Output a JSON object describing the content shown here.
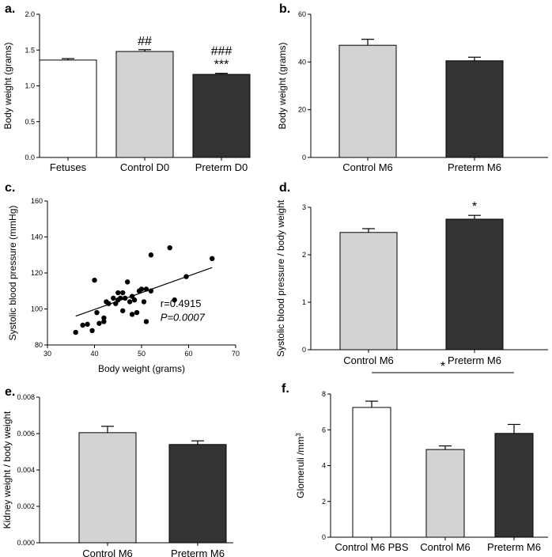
{
  "chart_data": [
    {
      "panel": "a.",
      "type": "bar",
      "categories": [
        "Fetuses",
        "Control D0",
        "Preterm D0"
      ],
      "values": [
        1.36,
        1.48,
        1.16
      ],
      "errors": [
        0.02,
        0.025,
        0.015
      ],
      "fills": [
        "#ffffff",
        "#d3d3d3",
        "#333333"
      ],
      "annotations": [
        "",
        "##",
        "###\n***"
      ],
      "ylabel": "Body weight (grams)",
      "ylim": [
        0,
        2.0
      ],
      "yticks": [
        "0.0",
        "0.5",
        "1.0",
        "1.5",
        "2.0"
      ]
    },
    {
      "panel": "b.",
      "type": "bar",
      "categories": [
        "Control M6",
        "Preterm M6"
      ],
      "values": [
        47,
        40.5
      ],
      "errors": [
        2.5,
        1.5
      ],
      "fills": [
        "#d3d3d3",
        "#333333"
      ],
      "annotations": [
        "",
        ""
      ],
      "ylabel": "Body weight (grams)",
      "ylim": [
        0,
        60
      ],
      "yticks": [
        "0",
        "20",
        "40",
        "60"
      ]
    },
    {
      "panel": "c.",
      "type": "scatter",
      "x": [
        36,
        37.5,
        38.5,
        39.5,
        40,
        40.5,
        41,
        42,
        42,
        42.5,
        43,
        44,
        44.5,
        45,
        45,
        45.5,
        46,
        46,
        46.5,
        47,
        47.5,
        48,
        48,
        48.5,
        49,
        49.5,
        50,
        50.5,
        51,
        51,
        52,
        52,
        56,
        57,
        59.5,
        65
      ],
      "y": [
        87,
        91,
        91.5,
        88,
        116,
        98,
        92,
        93,
        95,
        104,
        103,
        106,
        103,
        109,
        105,
        106,
        99,
        109,
        106,
        115,
        104,
        97,
        107,
        105,
        98,
        110,
        111,
        104,
        111,
        93,
        130,
        110,
        134,
        105,
        118,
        128
      ],
      "fit_line": {
        "x": [
          36,
          65
        ],
        "y": [
          96,
          123
        ]
      },
      "r_label": "r=0.4915",
      "p_label": "P=0.0007",
      "xlabel": "Body weight (grams)",
      "ylabel": "Systolic blood pressure (mmHg)",
      "xlim": [
        30,
        70
      ],
      "ylim": [
        80,
        160
      ],
      "xticks": [
        "30",
        "40",
        "50",
        "60",
        "70"
      ],
      "yticks": [
        "80",
        "100",
        "120",
        "140",
        "160"
      ]
    },
    {
      "panel": "d.",
      "type": "bar",
      "categories": [
        "Control M6",
        "Preterm M6"
      ],
      "values": [
        2.47,
        2.75
      ],
      "errors": [
        0.08,
        0.08
      ],
      "fills": [
        "#d3d3d3",
        "#333333"
      ],
      "annotations": [
        "",
        "*"
      ],
      "ylabel": "Systolic blood pressure / body weight",
      "ylim": [
        0,
        3
      ],
      "yticks": [
        "0",
        "1",
        "2",
        "3"
      ]
    },
    {
      "panel": "e.",
      "type": "bar",
      "categories": [
        "Control M6",
        "Preterm M6"
      ],
      "values": [
        0.00605,
        0.0054
      ],
      "errors": [
        0.00035,
        0.0002
      ],
      "fills": [
        "#d3d3d3",
        "#333333"
      ],
      "annotations": [
        "",
        ""
      ],
      "ylabel": "Kidney weight / body weight",
      "ylim": [
        0,
        0.008
      ],
      "yticks": [
        "0.000",
        "0.002",
        "0.004",
        "0.006",
        "0.008"
      ]
    },
    {
      "panel": "f.",
      "type": "bar",
      "categories": [
        "Control M6 PBS",
        "Control M6",
        "Preterm M6"
      ],
      "values": [
        7.25,
        4.9,
        5.8
      ],
      "errors": [
        0.35,
        0.2,
        0.5
      ],
      "fills": [
        "#ffffff",
        "#d3d3d3",
        "#333333"
      ],
      "annotations": [
        "",
        "",
        ""
      ],
      "bracket": {
        "from": 0,
        "to": 2,
        "label": "*"
      },
      "ylabel": "Glomeruli /mm",
      "ylabel_sup": "3",
      "ylim": [
        0,
        8
      ],
      "yticks": [
        "0",
        "2",
        "4",
        "6",
        "8"
      ]
    }
  ]
}
